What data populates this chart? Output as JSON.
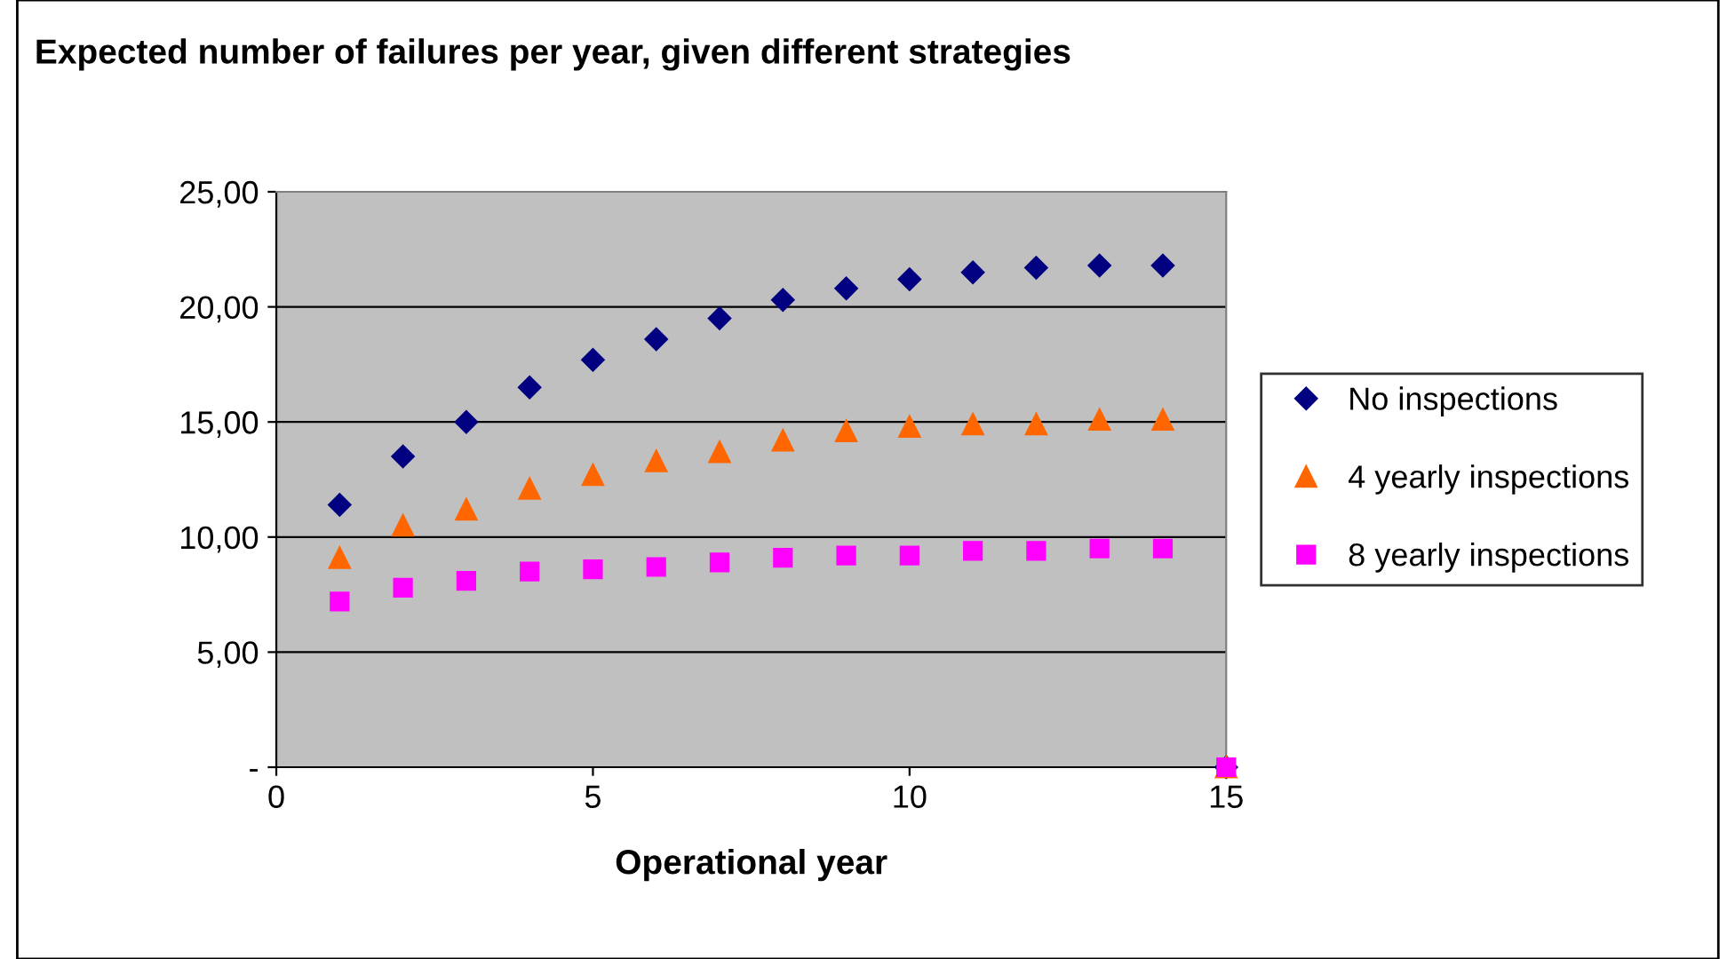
{
  "chart_data": {
    "type": "scatter",
    "title": "Expected number of failures per year, given different strategies",
    "xlabel": "Operational year",
    "x": [
      1,
      2,
      3,
      4,
      5,
      6,
      7,
      8,
      9,
      10,
      11,
      12,
      13,
      14,
      15
    ],
    "series": [
      {
        "name": "No inspections",
        "color": "#000080",
        "marker": "diamond",
        "values": [
          11.4,
          13.5,
          15.0,
          16.5,
          17.7,
          18.6,
          19.5,
          20.3,
          20.8,
          21.2,
          21.5,
          21.7,
          21.8,
          21.8,
          0
        ]
      },
      {
        "name": "4 yearly inspections",
        "color": "#ff6600",
        "marker": "triangle",
        "values": [
          9.1,
          10.5,
          11.2,
          12.1,
          12.7,
          13.3,
          13.7,
          14.2,
          14.6,
          14.8,
          14.9,
          14.9,
          15.1,
          15.1,
          0
        ]
      },
      {
        "name": "8 yearly inspections",
        "color": "#ff00ff",
        "marker": "square",
        "values": [
          7.2,
          7.8,
          8.1,
          8.5,
          8.6,
          8.7,
          8.9,
          9.1,
          9.2,
          9.2,
          9.4,
          9.4,
          9.5,
          9.5,
          0
        ]
      }
    ],
    "xlim": [
      0,
      15
    ],
    "xticks": [
      0,
      5,
      10,
      15
    ],
    "ylim": [
      0,
      25
    ],
    "yticks": [
      {
        "value": 0,
        "label": "-"
      },
      {
        "value": 5,
        "label": "5,00"
      },
      {
        "value": 10,
        "label": "10,00"
      },
      {
        "value": 15,
        "label": "15,00"
      },
      {
        "value": 20,
        "label": "20,00"
      },
      {
        "value": 25,
        "label": "25,00"
      }
    ],
    "grid": "y",
    "legend": "right"
  }
}
